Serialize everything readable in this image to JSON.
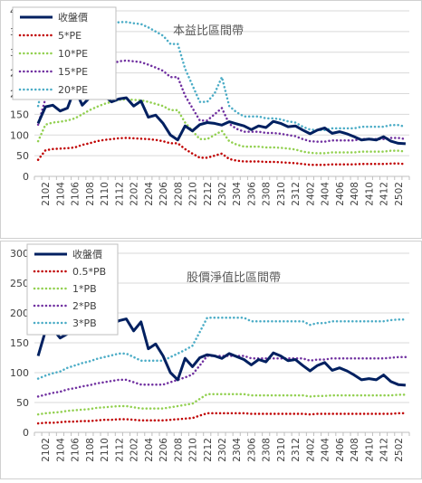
{
  "chart_data": [
    {
      "type": "line",
      "title": "本益比區間帶",
      "xlabel": "",
      "ylabel": "",
      "ylim": [
        0,
        400
      ],
      "yticks": [
        0,
        50,
        100,
        150,
        200,
        250,
        300,
        350,
        400
      ],
      "grid": "horizontal",
      "legend_position": "top-left",
      "x_tick_labels": [
        "2102",
        "2104",
        "2106",
        "2108",
        "2110",
        "2112",
        "2202",
        "2204",
        "2206",
        "2208",
        "2210",
        "2212",
        "2302",
        "2304",
        "2306",
        "2308",
        "2310",
        "2312",
        "2402",
        "2404",
        "2406",
        "2408",
        "2410",
        "2412",
        "2502"
      ],
      "x": [
        "2101",
        "2102",
        "2103",
        "2104",
        "2105",
        "2106",
        "2107",
        "2108",
        "2109",
        "2110",
        "2111",
        "2112",
        "2201",
        "2202",
        "2203",
        "2204",
        "2205",
        "2206",
        "2207",
        "2208",
        "2209",
        "2210",
        "2211",
        "2212",
        "2301",
        "2302",
        "2303",
        "2304",
        "2305",
        "2306",
        "2307",
        "2308",
        "2309",
        "2310",
        "2311",
        "2312",
        "2401",
        "2402",
        "2403",
        "2404",
        "2405",
        "2406",
        "2407",
        "2408",
        "2409",
        "2410",
        "2411",
        "2412",
        "2501",
        "2502",
        "2503"
      ],
      "series": [
        {
          "name": "收盤價",
          "color": "#002060",
          "style": "solid",
          "values": [
            128,
            168,
            172,
            158,
            165,
            212,
            172,
            190,
            188,
            195,
            180,
            187,
            190,
            170,
            182,
            143,
            148,
            128,
            100,
            88,
            122,
            110,
            125,
            130,
            128,
            124,
            132,
            127,
            122,
            113,
            122,
            118,
            133,
            128,
            120,
            122,
            112,
            103,
            112,
            117,
            104,
            108,
            103,
            96,
            88,
            90,
            88,
            96,
            85,
            80,
            79
          ]
        },
        {
          "name": "5*PE",
          "color": "#c00000",
          "style": "dotted",
          "values": [
            40,
            63,
            66,
            67,
            68,
            70,
            76,
            80,
            85,
            88,
            90,
            92,
            93,
            92,
            91,
            90,
            88,
            85,
            80,
            80,
            66,
            55,
            45,
            45,
            50,
            55,
            42,
            38,
            36,
            36,
            36,
            35,
            35,
            34,
            33,
            32,
            30,
            28,
            28,
            28,
            29,
            29,
            29,
            29,
            30,
            30,
            30,
            30,
            31,
            31,
            30
          ]
        },
        {
          "name": "10*PE",
          "color": "#92d050",
          "style": "dotted",
          "values": [
            85,
            125,
            130,
            132,
            135,
            140,
            150,
            160,
            168,
            175,
            180,
            185,
            186,
            185,
            184,
            180,
            175,
            170,
            160,
            160,
            130,
            110,
            90,
            90,
            100,
            110,
            85,
            77,
            72,
            72,
            72,
            70,
            70,
            69,
            67,
            65,
            60,
            57,
            56,
            56,
            58,
            58,
            58,
            58,
            60,
            60,
            60,
            60,
            62,
            62,
            60
          ]
        },
        {
          "name": "15*PE",
          "color": "#7030a0",
          "style": "dotted",
          "values": [
            125,
            188,
            193,
            198,
            203,
            210,
            225,
            240,
            255,
            265,
            272,
            278,
            280,
            278,
            276,
            270,
            263,
            255,
            240,
            240,
            195,
            165,
            135,
            135,
            150,
            165,
            127,
            115,
            108,
            108,
            108,
            105,
            105,
            103,
            100,
            97,
            90,
            85,
            84,
            84,
            87,
            87,
            87,
            87,
            90,
            90,
            90,
            90,
            93,
            93,
            90
          ]
        },
        {
          "name": "20*PE",
          "color": "#4bacc6",
          "style": "dotted",
          "values": [
            170,
            250,
            258,
            264,
            270,
            280,
            300,
            320,
            340,
            353,
            365,
            373,
            373,
            370,
            368,
            360,
            350,
            340,
            320,
            320,
            260,
            220,
            180,
            180,
            200,
            240,
            170,
            155,
            145,
            145,
            145,
            140,
            140,
            138,
            133,
            130,
            120,
            113,
            112,
            112,
            116,
            116,
            116,
            116,
            120,
            120,
            120,
            120,
            124,
            124,
            120
          ]
        }
      ]
    },
    {
      "type": "line",
      "title": "股價淨值比區間帶",
      "xlabel": "",
      "ylabel": "",
      "ylim": [
        0,
        300
      ],
      "yticks": [
        0,
        50,
        100,
        150,
        200,
        250,
        300
      ],
      "grid": "horizontal",
      "legend_position": "top-left",
      "x_tick_labels": [
        "2102",
        "2104",
        "2106",
        "2108",
        "2110",
        "2112",
        "2202",
        "2204",
        "2206",
        "2208",
        "2210",
        "2212",
        "2302",
        "2304",
        "2306",
        "2308",
        "2310",
        "2312",
        "2402",
        "2404",
        "2406",
        "2408",
        "2410",
        "2412",
        "2502"
      ],
      "x": [
        "2101",
        "2102",
        "2103",
        "2104",
        "2105",
        "2106",
        "2107",
        "2108",
        "2109",
        "2110",
        "2111",
        "2112",
        "2201",
        "2202",
        "2203",
        "2204",
        "2205",
        "2206",
        "2207",
        "2208",
        "2209",
        "2210",
        "2211",
        "2212",
        "2301",
        "2302",
        "2303",
        "2304",
        "2305",
        "2306",
        "2307",
        "2308",
        "2309",
        "2310",
        "2311",
        "2312",
        "2401",
        "2402",
        "2403",
        "2404",
        "2405",
        "2406",
        "2407",
        "2408",
        "2409",
        "2410",
        "2411",
        "2412",
        "2501",
        "2502",
        "2503"
      ],
      "series": [
        {
          "name": "收盤價",
          "color": "#002060",
          "style": "solid",
          "values": [
            128,
            170,
            173,
            158,
            165,
            212,
            172,
            190,
            188,
            195,
            180,
            187,
            190,
            170,
            185,
            140,
            148,
            128,
            100,
            88,
            124,
            110,
            125,
            130,
            128,
            124,
            132,
            127,
            122,
            113,
            122,
            118,
            133,
            128,
            120,
            122,
            112,
            103,
            112,
            117,
            104,
            108,
            103,
            96,
            88,
            90,
            88,
            96,
            85,
            80,
            79
          ]
        },
        {
          "name": "0.5*PB",
          "color": "#c00000",
          "style": "dotted",
          "values": [
            15,
            16,
            16,
            17,
            18,
            18,
            19,
            19,
            20,
            21,
            21,
            22,
            22,
            21,
            20,
            20,
            20,
            20,
            21,
            22,
            23,
            24,
            28,
            32,
            32,
            32,
            32,
            32,
            32,
            31,
            31,
            31,
            31,
            31,
            31,
            31,
            31,
            30,
            31,
            31,
            31,
            31,
            31,
            31,
            31,
            31,
            31,
            31,
            31,
            32,
            32
          ]
        },
        {
          "name": "1*PB",
          "color": "#92d050",
          "style": "dotted",
          "values": [
            30,
            32,
            33,
            34,
            36,
            37,
            38,
            39,
            41,
            42,
            43,
            44,
            44,
            42,
            40,
            40,
            40,
            40,
            42,
            44,
            46,
            48,
            56,
            64,
            64,
            64,
            64,
            64,
            64,
            62,
            62,
            62,
            62,
            62,
            62,
            62,
            62,
            60,
            61,
            61,
            62,
            62,
            62,
            62,
            62,
            62,
            62,
            62,
            62,
            63,
            63
          ]
        },
        {
          "name": "2*PB",
          "color": "#7030a0",
          "style": "dotted",
          "values": [
            60,
            63,
            66,
            68,
            72,
            74,
            77,
            79,
            82,
            84,
            86,
            88,
            88,
            84,
            80,
            80,
            80,
            80,
            84,
            88,
            92,
            97,
            112,
            128,
            128,
            128,
            128,
            128,
            128,
            124,
            124,
            124,
            124,
            124,
            124,
            124,
            124,
            120,
            122,
            122,
            124,
            124,
            124,
            124,
            124,
            124,
            124,
            124,
            125,
            126,
            126
          ]
        },
        {
          "name": "3*PB",
          "color": "#4bacc6",
          "style": "dotted",
          "values": [
            90,
            95,
            99,
            102,
            108,
            112,
            116,
            119,
            123,
            126,
            129,
            132,
            132,
            126,
            120,
            120,
            120,
            120,
            126,
            132,
            138,
            145,
            168,
            192,
            192,
            192,
            192,
            192,
            192,
            186,
            186,
            186,
            186,
            186,
            186,
            186,
            186,
            180,
            183,
            183,
            186,
            186,
            186,
            186,
            186,
            186,
            186,
            186,
            188,
            189,
            189
          ]
        }
      ]
    }
  ]
}
